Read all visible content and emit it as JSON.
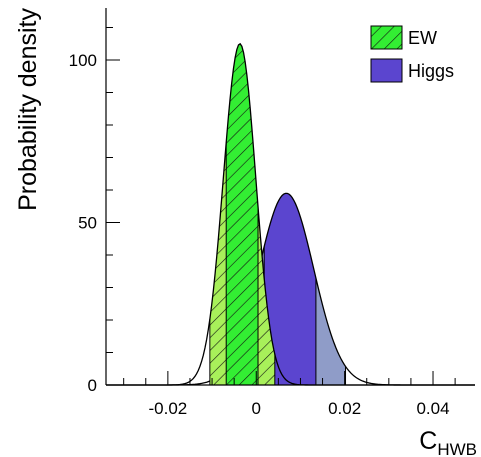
{
  "chart_data": {
    "type": "area",
    "xlabel_main": "C",
    "xlabel_sub": "HWB",
    "ylabel": "Probability density",
    "xlim": [
      -0.034,
      0.0495
    ],
    "ylim": [
      0,
      116
    ],
    "x_ticks": [
      -0.02,
      0,
      0.02,
      0.04
    ],
    "x_tick_labels": [
      "-0.02",
      "0",
      "0.02",
      "0.04"
    ],
    "y_ticks": [
      0,
      50,
      100
    ],
    "y_tick_labels": [
      "0",
      "50",
      "100"
    ],
    "legend_position": "top-right",
    "series": [
      {
        "name": "EW",
        "distribution": "gaussian",
        "peak_x": -0.0037,
        "peak_y": 105,
        "sigma_left": 0.00375,
        "sigma_right": 0.0036,
        "band_68": [
          -0.0068,
          0.0004
        ],
        "band_95": [
          -0.0105,
          0.0042
        ],
        "color": "#33ee33",
        "light_color": "#a8f05a",
        "dark_color": "#2ea82e",
        "hatched": true
      },
      {
        "name": "Higgs",
        "distribution": "gaussian",
        "peak_x": 0.0068,
        "peak_y": 59,
        "sigma_left": 0.0062,
        "sigma_right": 0.0062,
        "band_68": [
          0.0018,
          0.0135
        ],
        "band_95": [
          -0.0043,
          0.0202
        ],
        "color": "#5b45cf",
        "light_color": "#8f9cc8",
        "dark_color": "#6a5acd",
        "hatched": false
      }
    ]
  }
}
